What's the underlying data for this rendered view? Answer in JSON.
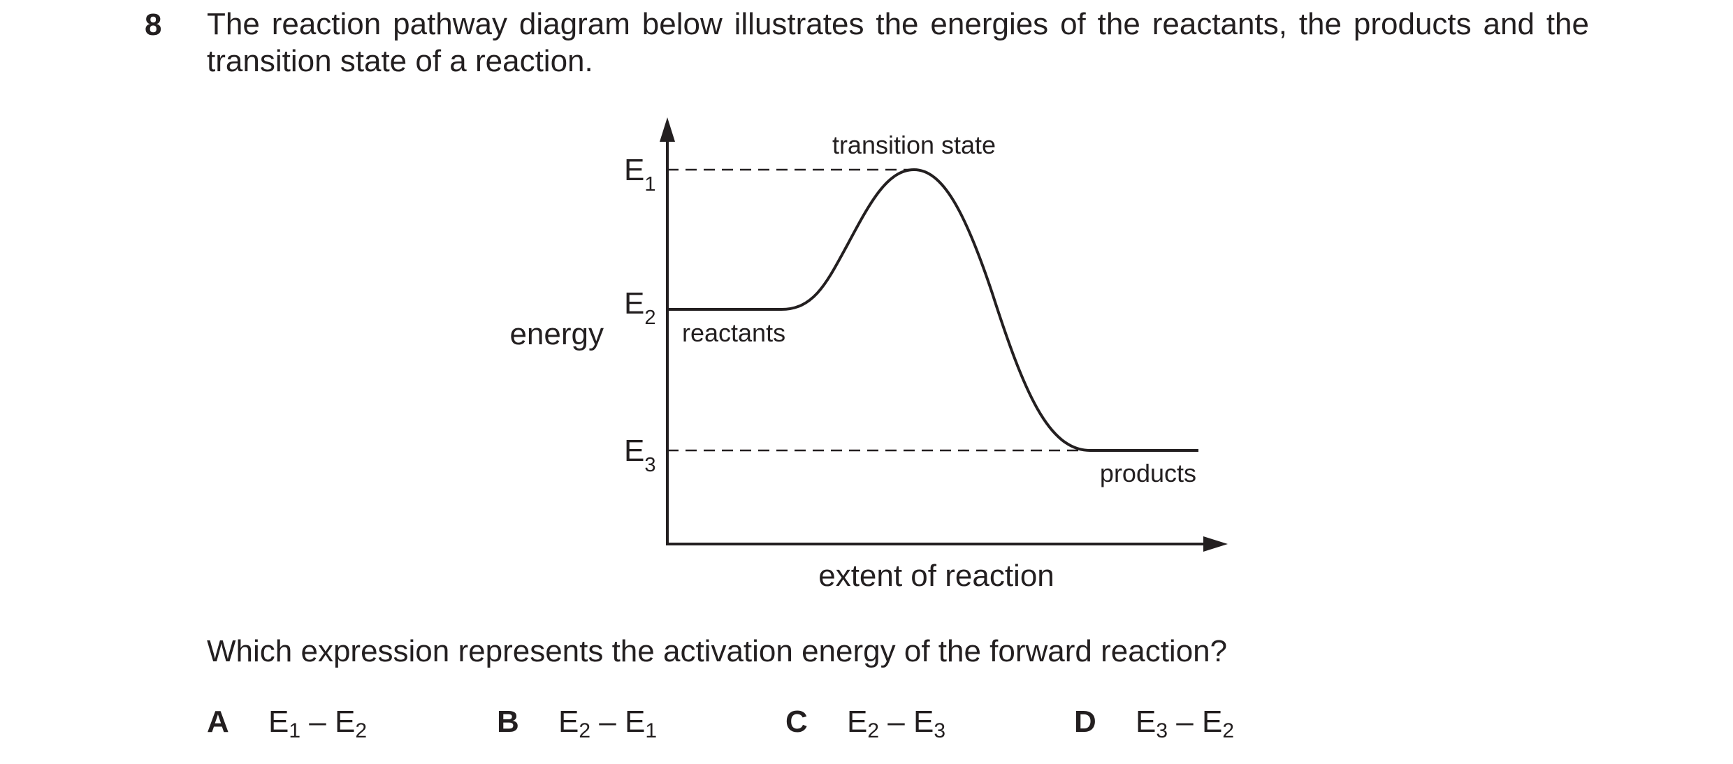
{
  "question": {
    "number": "8",
    "stem": "The reaction pathway diagram below illustrates the energies of the reactants, the products and the transition state of a reaction.",
    "prompt": "Which expression represents the activation energy of the forward reaction?"
  },
  "diagram": {
    "y_axis_label": "energy",
    "x_axis_label": "extent of reaction",
    "levels": [
      {
        "symbol": "E",
        "subscript": "1"
      },
      {
        "symbol": "E",
        "subscript": "2"
      },
      {
        "symbol": "E",
        "subscript": "3"
      }
    ],
    "curve_labels": {
      "transition_state": "transition state",
      "reactants": "reactants",
      "products": "products"
    }
  },
  "options": [
    {
      "letter": "A",
      "term1": "E",
      "sub1": "1",
      "op": " – ",
      "term2": "E",
      "sub2": "2"
    },
    {
      "letter": "B",
      "term1": "E",
      "sub1": "2",
      "op": " – ",
      "term2": "E",
      "sub2": "1"
    },
    {
      "letter": "C",
      "term1": "E",
      "sub1": "2",
      "op": " – ",
      "term2": "E",
      "sub2": "3"
    },
    {
      "letter": "D",
      "term1": "E",
      "sub1": "3",
      "op": " – ",
      "term2": "E",
      "sub2": "2"
    }
  ]
}
